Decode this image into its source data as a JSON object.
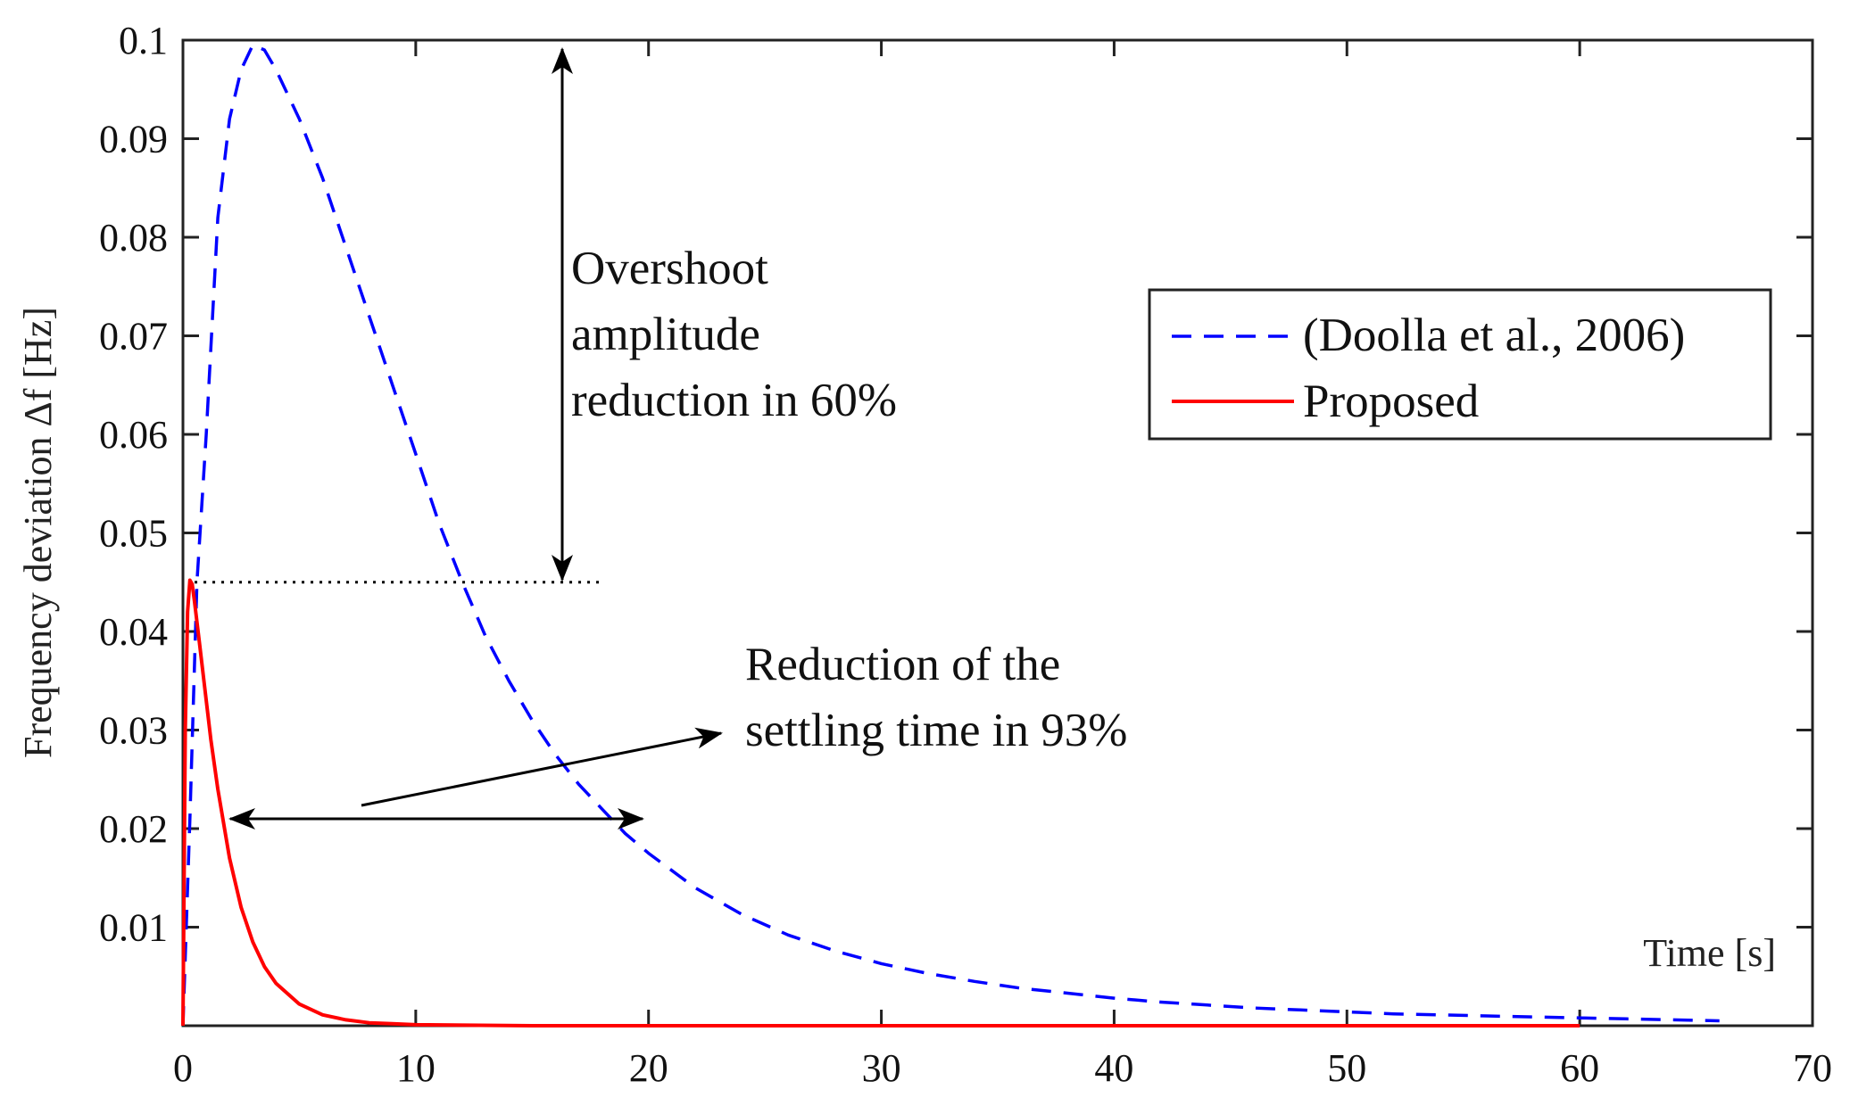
{
  "chart_data": {
    "type": "line",
    "xlabel": "Time [s]",
    "ylabel": "Frequency deviation Δf [Hz]",
    "xlim": [
      0,
      70
    ],
    "ylim": [
      0,
      0.1
    ],
    "xticks": [
      0,
      10,
      20,
      30,
      40,
      50,
      60,
      70
    ],
    "xtick_labels": [
      "0",
      "10",
      "20",
      "30",
      "40",
      "50",
      "60",
      "70"
    ],
    "yticks": [
      0.01,
      0.02,
      0.03,
      0.04,
      0.05,
      0.06,
      0.07,
      0.08,
      0.09,
      0.1
    ],
    "ytick_labels": [
      "0.01",
      "0.02",
      "0.03",
      "0.04",
      "0.05",
      "0.06",
      "0.07",
      "0.08",
      "0.09",
      "0.1"
    ],
    "legend_position": "right",
    "series": [
      {
        "name": "(Doolla et al., 2006)",
        "color": "#0000ff",
        "style": "dashed",
        "x": [
          0,
          0.3,
          0.6,
          1,
          1.5,
          2,
          2.5,
          3,
          3.5,
          4,
          5,
          6,
          7,
          8,
          9,
          10,
          11,
          12,
          13,
          14,
          15,
          16,
          17,
          18,
          19,
          20,
          22,
          24,
          26,
          28,
          30,
          32,
          34,
          36,
          38,
          40,
          42,
          44,
          46,
          48,
          50,
          52,
          54,
          56,
          58,
          60,
          62,
          64,
          66
        ],
        "values": [
          0,
          0.021,
          0.045,
          0.06,
          0.082,
          0.092,
          0.097,
          0.0995,
          0.099,
          0.097,
          0.092,
          0.086,
          0.079,
          0.072,
          0.065,
          0.058,
          0.051,
          0.045,
          0.0395,
          0.035,
          0.031,
          0.0275,
          0.0245,
          0.022,
          0.0195,
          0.0175,
          0.014,
          0.0113,
          0.0092,
          0.0076,
          0.0063,
          0.0053,
          0.0045,
          0.0038,
          0.0033,
          0.0028,
          0.0024,
          0.0021,
          0.0018,
          0.0016,
          0.0014,
          0.0012,
          0.0011,
          0.001,
          0.0009,
          0.0008,
          0.0007,
          0.0006,
          0.0005
        ]
      },
      {
        "name": "Proposed",
        "color": "#ff0000",
        "style": "solid",
        "x": [
          0,
          0.1,
          0.2,
          0.3,
          0.4,
          0.5,
          0.7,
          0.9,
          1.2,
          1.5,
          2,
          2.5,
          3,
          3.5,
          4,
          5,
          6,
          7,
          8,
          9,
          10,
          15,
          20,
          30,
          40,
          50,
          60
        ],
        "values": [
          0,
          0.03,
          0.042,
          0.0452,
          0.0448,
          0.043,
          0.039,
          0.035,
          0.029,
          0.024,
          0.017,
          0.012,
          0.0085,
          0.006,
          0.0043,
          0.0022,
          0.0011,
          0.0006,
          0.0003,
          0.0002,
          0.0001,
          0,
          0,
          0,
          0,
          0,
          0
        ]
      }
    ],
    "annotations": {
      "overshoot": [
        "Overshoot",
        "amplitude",
        "reduction in 60%"
      ],
      "settling": [
        "Reduction of the",
        "settling time in 93%"
      ]
    },
    "reference_line": {
      "y": 0.045,
      "x_start": 0.5,
      "x_end": 18,
      "style": "dotted"
    }
  }
}
